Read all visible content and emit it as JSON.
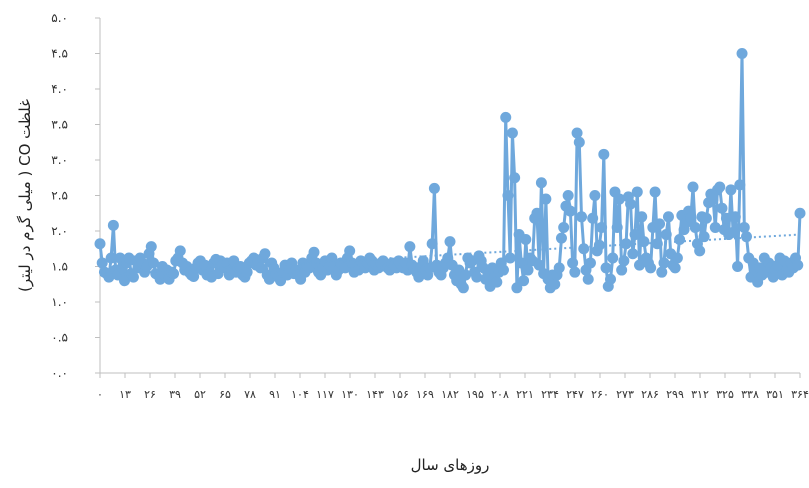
{
  "chart_data": {
    "type": "line",
    "ylabel": "غلظت CO ( میلی گرم در لیتر)",
    "xlabel": "روزهای سال",
    "y_tick_labels": [
      "۰.۰",
      "۰.۵",
      "۱.۰",
      "۱.۵",
      "۲.۰",
      "۲.۵",
      "۳.۰",
      "۳.۵",
      "۴.۰",
      "۴.۵",
      "۵.۰"
    ],
    "y_tick_values": [
      0,
      0.5,
      1.0,
      1.5,
      2.0,
      2.5,
      3.0,
      3.5,
      4.0,
      4.5,
      5.0
    ],
    "ylim": [
      0,
      5.0
    ],
    "xlim": [
      0,
      364
    ],
    "x_tick_labels": [
      "۰",
      "۱۳",
      "۲۶",
      "۳۹",
      "۵۲",
      "۶۵",
      "۷۸",
      "۹۱",
      "۱۰۴",
      "۱۱۷",
      "۱۳۰",
      "۱۴۳",
      "۱۵۶",
      "۱۶۹",
      "۱۸۲",
      "۱۹۵",
      "۲۰۸",
      "۲۲۱",
      "۲۳۴",
      "۲۴۷",
      "۲۶۰",
      "۲۷۳",
      "۲۸۶",
      "۲۹۹",
      "۳۱۲",
      "۳۲۵",
      "۳۳۸",
      "۳۵۱",
      "۳۶۴"
    ],
    "x_tick_values": [
      0,
      13,
      26,
      39,
      52,
      65,
      78,
      91,
      104,
      117,
      130,
      143,
      156,
      169,
      182,
      195,
      208,
      221,
      234,
      247,
      260,
      273,
      286,
      299,
      312,
      325,
      338,
      351,
      364
    ],
    "grid": false,
    "legend": "none",
    "series": [
      {
        "color": "#6fa8dc",
        "marker": "circle",
        "values": [
          1.82,
          1.55,
          1.42,
          1.4,
          1.35,
          1.62,
          2.08,
          1.45,
          1.38,
          1.62,
          1.48,
          1.3,
          1.55,
          1.62,
          1.4,
          1.35,
          1.58,
          1.48,
          1.62,
          1.55,
          1.42,
          1.5,
          1.68,
          1.78,
          1.55,
          1.4,
          1.38,
          1.32,
          1.5,
          1.38,
          1.45,
          1.32,
          1.42,
          1.4,
          1.58,
          1.62,
          1.72,
          1.55,
          1.45,
          1.5,
          1.42,
          1.38,
          1.36,
          1.48,
          1.55,
          1.58,
          1.45,
          1.52,
          1.38,
          1.42,
          1.35,
          1.55,
          1.6,
          1.4,
          1.58,
          1.52,
          1.48,
          1.55,
          1.38,
          1.45,
          1.58,
          1.42,
          1.48,
          1.5,
          1.38,
          1.35,
          1.42,
          1.55,
          1.58,
          1.62,
          1.52,
          1.55,
          1.48,
          1.62,
          1.68,
          1.38,
          1.32,
          1.55,
          1.48,
          1.4,
          1.35,
          1.3,
          1.42,
          1.52,
          1.38,
          1.48,
          1.55,
          1.4,
          1.45,
          1.38,
          1.32,
          1.55,
          1.42,
          1.5,
          1.48,
          1.62,
          1.7,
          1.55,
          1.42,
          1.38,
          1.48,
          1.58,
          1.45,
          1.52,
          1.62,
          1.5,
          1.38,
          1.45,
          1.55,
          1.52,
          1.48,
          1.62,
          1.72,
          1.55,
          1.42,
          1.48,
          1.45,
          1.58,
          1.52,
          1.48,
          1.55,
          1.62,
          1.58,
          1.45,
          1.52,
          1.48,
          1.55,
          1.58,
          1.52,
          1.48,
          1.45,
          1.55,
          1.52,
          1.48,
          1.58,
          1.52,
          1.48,
          1.55,
          1.45,
          1.78,
          1.52,
          1.48,
          1.42,
          1.35,
          1.5,
          1.58,
          1.45,
          1.38,
          1.48,
          1.82,
          2.6,
          1.52,
          1.42,
          1.38,
          1.48,
          1.55,
          1.62,
          1.85,
          1.52,
          1.38,
          1.3,
          1.45,
          1.25,
          1.2,
          1.38,
          1.62,
          1.55,
          1.58,
          1.42,
          1.35,
          1.65,
          1.58,
          1.48,
          1.32,
          1.4,
          1.22,
          1.48,
          1.35,
          1.28,
          1.42,
          1.55,
          1.45,
          3.6,
          2.5,
          1.62,
          3.38,
          2.75,
          1.2,
          1.95,
          1.55,
          1.3,
          1.88,
          1.45,
          1.62,
          1.58,
          2.18,
          2.25,
          1.52,
          2.68,
          1.4,
          2.45,
          1.32,
          1.2,
          1.38,
          1.25,
          1.38,
          1.48,
          1.9,
          2.05,
          2.35,
          2.5,
          2.28,
          1.55,
          1.42,
          3.38,
          3.25,
          2.2,
          1.75,
          1.45,
          1.32,
          1.55,
          2.18,
          2.5,
          1.72,
          1.8,
          2.05,
          3.08,
          1.48,
          1.22,
          1.32,
          1.62,
          2.55,
          2.05,
          2.45,
          1.45,
          1.58,
          1.82,
          2.48,
          2.38,
          1.68,
          1.95,
          2.55,
          1.52,
          2.2,
          1.85,
          1.62,
          1.55,
          1.48,
          2.05,
          2.55,
          1.82,
          2.1,
          1.42,
          1.55,
          1.95,
          2.2,
          1.68,
          1.52,
          1.48,
          1.62,
          1.88,
          2.22,
          2.02,
          2.12,
          2.28,
          2.18,
          2.62,
          2.05,
          1.82,
          1.72,
          2.2,
          1.92,
          2.18,
          2.4,
          2.52,
          2.45,
          2.05,
          2.58,
          2.62,
          2.32,
          2.02,
          2.18,
          1.95,
          2.58,
          1.98,
          2.2,
          1.5,
          2.65,
          4.5,
          2.05,
          1.92,
          1.62,
          1.35,
          1.55,
          1.45,
          1.28,
          1.48,
          1.38,
          1.62,
          1.42,
          1.55,
          1.48,
          1.35,
          1.45,
          1.52,
          1.62,
          1.38,
          1.58,
          1.45,
          1.42,
          1.55,
          1.48,
          1.62,
          1.52,
          2.25
        ]
      }
    ],
    "trendline": {
      "style": "dotted",
      "color": "#6fa8dc",
      "start": 1.38,
      "end": 1.95
    }
  }
}
